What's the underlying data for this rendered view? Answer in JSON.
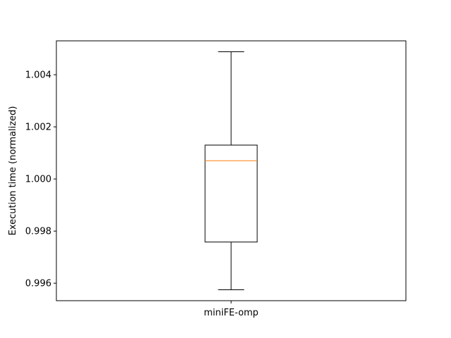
{
  "chart_data": {
    "type": "box",
    "title": "",
    "xlabel": "",
    "ylabel": "Execution time (normalized)",
    "categories": [
      "miniFE-omp"
    ],
    "boxes": [
      {
        "name": "miniFE-omp",
        "whisker_low": 0.99575,
        "q1": 0.99758,
        "median": 1.0007,
        "q3": 1.0013,
        "whisker_high": 1.00488
      }
    ],
    "ylim": [
      0.99533,
      1.0053
    ],
    "yticks": [
      "0.996",
      "0.998",
      "1.000",
      "1.002",
      "1.004"
    ],
    "ytick_values": [
      0.996,
      0.998,
      1.0,
      1.002,
      1.004
    ],
    "grid": false,
    "colors": {
      "box": "#000000",
      "median": "#ff7f0e",
      "background": "#ffffff"
    }
  }
}
